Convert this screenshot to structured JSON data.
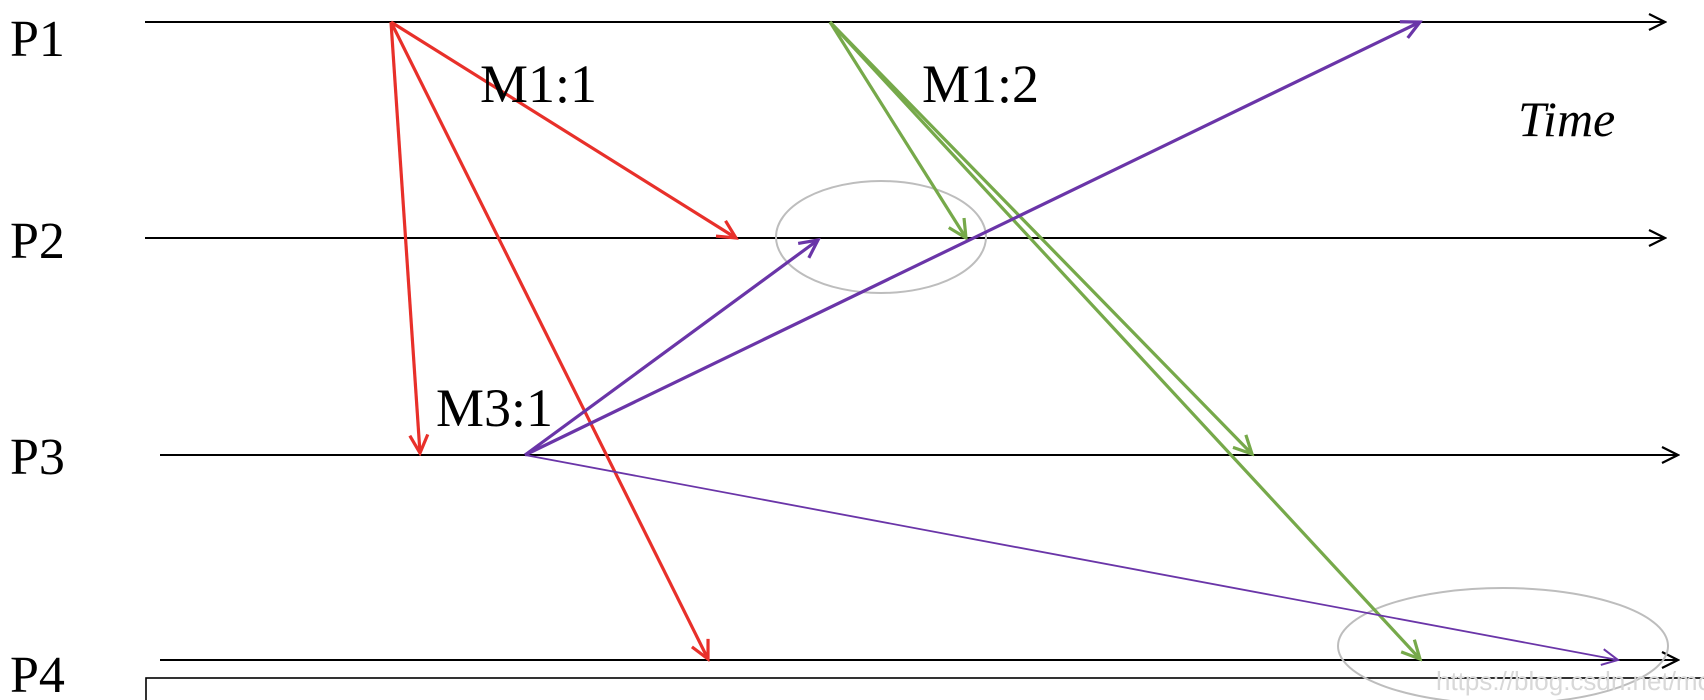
{
  "time_label": "Time",
  "processes": [
    {
      "id": "p1",
      "label": "P1"
    },
    {
      "id": "p2",
      "label": "P2"
    },
    {
      "id": "p3",
      "label": "P3"
    },
    {
      "id": "p4",
      "label": "P4"
    }
  ],
  "message_labels": {
    "m1_1": "M1:1",
    "m1_2": "M1:2",
    "m3_1": "M3:1"
  },
  "colors": {
    "timeline": "#000000",
    "m1_1": "#e8302a",
    "m1_2": "#76a94a",
    "m3_1": "#6a35a8",
    "circle": "#bdbdbd"
  },
  "watermark": "https://blog.csdn.net/mo"
}
